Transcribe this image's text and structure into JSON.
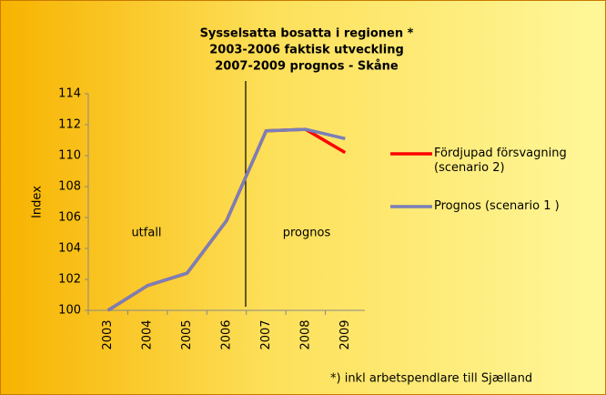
{
  "chart_data": {
    "type": "line",
    "title": [
      "Sysselsatta bosatta i regionen *",
      "2003-2006 faktisk utveckling",
      "2007-2009 prognos - Skåne"
    ],
    "y_label": "Index",
    "categories": [
      "2003",
      "2004",
      "2005",
      "2006",
      "2007",
      "2008",
      "2009"
    ],
    "series": [
      {
        "name": "Fördjupad försvagning (scenario 2)",
        "color": "#ff0000",
        "values": [
          100,
          101.6,
          102.4,
          105.8,
          111.6,
          111.7,
          110.2
        ]
      },
      {
        "name": "Prognos (scenario 1 )",
        "color": "#7a7fb8",
        "values": [
          100,
          101.6,
          102.4,
          105.8,
          111.6,
          111.7,
          111.1
        ]
      }
    ],
    "ylim": [
      100,
      114
    ],
    "yticks": [
      100,
      102,
      104,
      106,
      108,
      110,
      112,
      114
    ],
    "annotations": [
      "utfall",
      "prognos"
    ],
    "footnote": "*) inkl arbetspendlare till Sjælland"
  }
}
